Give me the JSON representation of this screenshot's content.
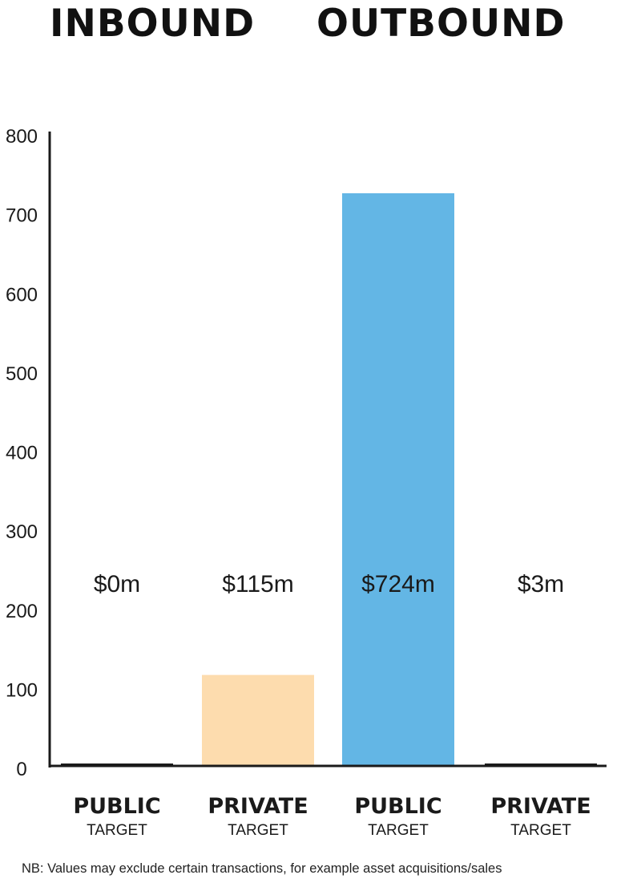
{
  "headings": {
    "inbound": "INBOUND",
    "outbound": "OUTBOUND"
  },
  "chart_data": {
    "type": "bar",
    "groups": [
      "INBOUND",
      "OUTBOUND"
    ],
    "categories": [
      {
        "group": "INBOUND",
        "label": "PUBLIC",
        "sublabel": "TARGET"
      },
      {
        "group": "INBOUND",
        "label": "PRIVATE",
        "sublabel": "TARGET"
      },
      {
        "group": "OUTBOUND",
        "label": "PUBLIC",
        "sublabel": "TARGET"
      },
      {
        "group": "OUTBOUND",
        "label": "PRIVATE",
        "sublabel": "TARGET"
      }
    ],
    "values": [
      0,
      115,
      724,
      3
    ],
    "data_labels": [
      "$0m",
      "$115m",
      "$724m",
      "$3m"
    ],
    "colors": [
      "#1a1a1a",
      "#fddcae",
      "#63b6e5",
      "#1a1a1a"
    ],
    "ylim": [
      0,
      800
    ],
    "yticks": [
      0,
      100,
      200,
      300,
      400,
      500,
      600,
      700,
      800
    ],
    "grid": false,
    "legend": "none"
  },
  "note": "NB: Values may exclude certain transactions, for example asset acquisitions/sales"
}
